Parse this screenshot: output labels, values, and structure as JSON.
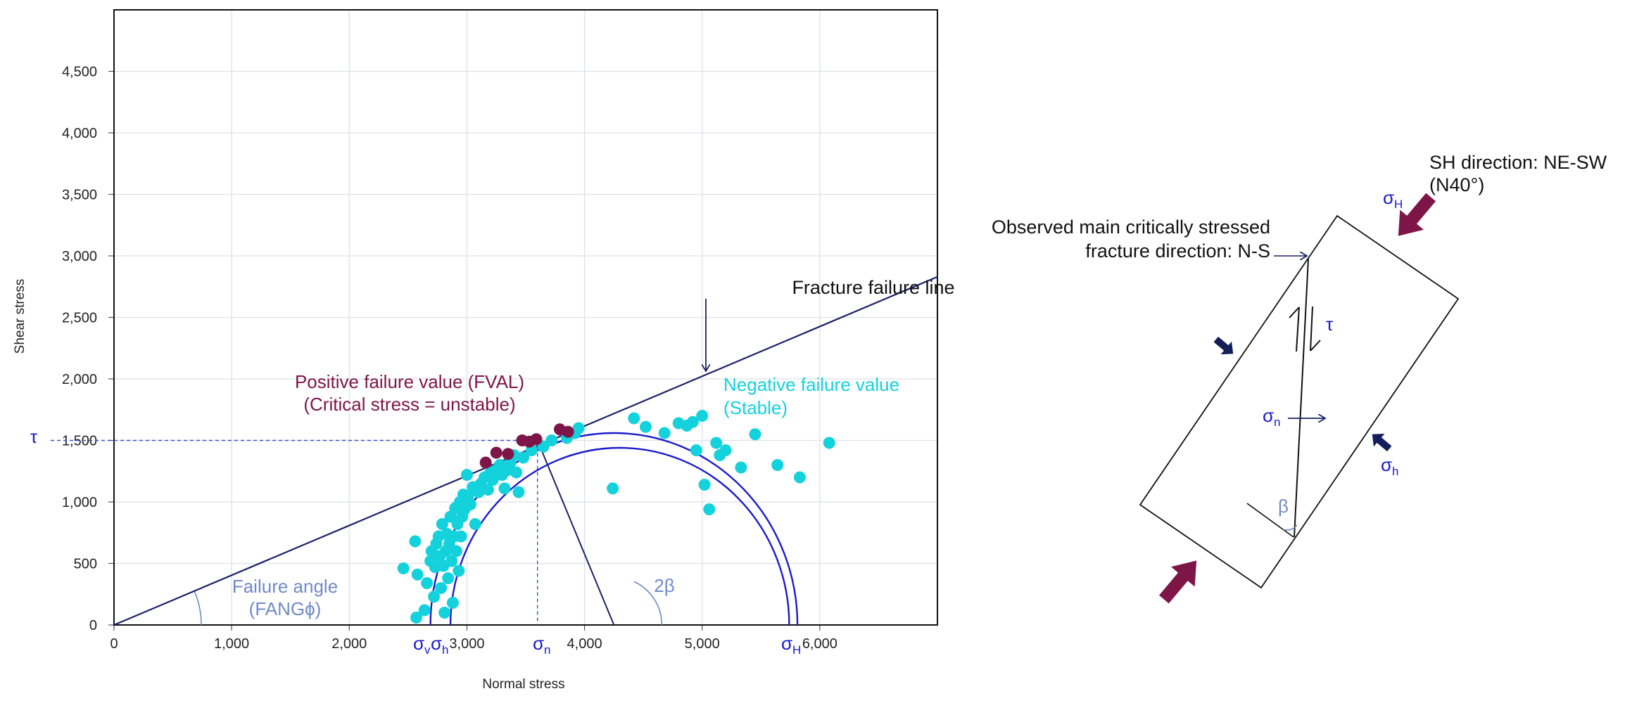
{
  "colors": {
    "navy": "#1a2266",
    "blue": "#1a1acc",
    "cyan": "#14d2dc",
    "maroon": "#7e1548",
    "grid": "#dfe0ea",
    "light_blue": "#6f8ac8"
  },
  "chart_data": {
    "type": "scatter",
    "xlabel": "Normal stress",
    "ylabel": "Shear stress",
    "xlim": [
      0,
      7000
    ],
    "ylim": [
      0,
      5000
    ],
    "grid": true,
    "x_ticks": [
      {
        "v": 0,
        "label": "0"
      },
      {
        "v": 1000,
        "label": "1,000"
      },
      {
        "v": 2000,
        "label": "2,000"
      },
      {
        "v": 3000,
        "label": "3,000"
      },
      {
        "v": 4000,
        "label": "4,000"
      },
      {
        "v": 5000,
        "label": "5,000"
      },
      {
        "v": 6000,
        "label": "6,000"
      }
    ],
    "y_ticks": [
      {
        "v": 0,
        "label": "0"
      },
      {
        "v": 500,
        "label": "500"
      },
      {
        "v": 1000,
        "label": "1,000"
      },
      {
        "v": 1500,
        "label": "1,500"
      },
      {
        "v": 2000,
        "label": "2,000"
      },
      {
        "v": 2500,
        "label": "2,500"
      },
      {
        "v": 3000,
        "label": "3,000"
      },
      {
        "v": 3500,
        "label": "3,500"
      },
      {
        "v": 4000,
        "label": "4,000"
      },
      {
        "v": 4500,
        "label": "4,500"
      }
    ],
    "failure_line": {
      "x": [
        0,
        7000
      ],
      "y": [
        0,
        2830
      ]
    },
    "mohr_circles": [
      {
        "name": "outer",
        "center": 4250,
        "radius": 1560
      },
      {
        "name": "inner",
        "center": 4300,
        "radius": 1440
      }
    ],
    "stress_markers": {
      "tau_value": 1500,
      "sigma_n": 3600,
      "circle_center": 4250,
      "two_beta_deg": 65
    },
    "series": [
      {
        "name": "Positive failure value (FVAL)",
        "color": "#7e1548",
        "points": [
          [
            3160,
            1320
          ],
          [
            3250,
            1400
          ],
          [
            3350,
            1390
          ],
          [
            3470,
            1500
          ],
          [
            3530,
            1490
          ],
          [
            3590,
            1510
          ],
          [
            3790,
            1590
          ],
          [
            3860,
            1570
          ]
        ]
      },
      {
        "name": "Negative failure value (Stable)",
        "color": "#14d2dc",
        "points": [
          [
            2460,
            460
          ],
          [
            2560,
            680
          ],
          [
            2580,
            410
          ],
          [
            2640,
            120
          ],
          [
            2660,
            340
          ],
          [
            2690,
            520
          ],
          [
            2700,
            600
          ],
          [
            2720,
            230
          ],
          [
            2730,
            470
          ],
          [
            2740,
            660
          ],
          [
            2760,
            720
          ],
          [
            2770,
            560
          ],
          [
            2780,
            300
          ],
          [
            2790,
            820
          ],
          [
            2800,
            480
          ],
          [
            2810,
            100
          ],
          [
            2820,
            600
          ],
          [
            2830,
            740
          ],
          [
            2840,
            380
          ],
          [
            2850,
            660
          ],
          [
            2860,
            880
          ],
          [
            2870,
            520
          ],
          [
            2880,
            180
          ],
          [
            2890,
            720
          ],
          [
            2900,
            950
          ],
          [
            2910,
            600
          ],
          [
            2920,
            820
          ],
          [
            2930,
            440
          ],
          [
            2940,
            1000
          ],
          [
            2950,
            720
          ],
          [
            2960,
            880
          ],
          [
            2970,
            1060
          ],
          [
            2980,
            940
          ],
          [
            3000,
            1220
          ],
          [
            3010,
            1040
          ],
          [
            3030,
            980
          ],
          [
            3050,
            1120
          ],
          [
            3070,
            820
          ],
          [
            3100,
            1080
          ],
          [
            3120,
            1150
          ],
          [
            3150,
            1200
          ],
          [
            3180,
            1100
          ],
          [
            3200,
            1240
          ],
          [
            3220,
            1180
          ],
          [
            3250,
            1260
          ],
          [
            3280,
            1300
          ],
          [
            3300,
            1220
          ],
          [
            3320,
            1110
          ],
          [
            3350,
            1260
          ],
          [
            3370,
            1320
          ],
          [
            3400,
            1380
          ],
          [
            3420,
            1240
          ],
          [
            3440,
            1080
          ],
          [
            3480,
            1360
          ],
          [
            3550,
            1420
          ],
          [
            3650,
            1450
          ],
          [
            3720,
            1500
          ],
          [
            3850,
            1520
          ],
          [
            3920,
            1560
          ],
          [
            3950,
            1600
          ],
          [
            4240,
            1110
          ],
          [
            4420,
            1680
          ],
          [
            4520,
            1610
          ],
          [
            4680,
            1560
          ],
          [
            4800,
            1640
          ],
          [
            4870,
            1620
          ],
          [
            4920,
            1650
          ],
          [
            4950,
            1420
          ],
          [
            5000,
            1700
          ],
          [
            5020,
            1140
          ],
          [
            5060,
            940
          ],
          [
            5120,
            1480
          ],
          [
            5150,
            1380
          ],
          [
            5200,
            1420
          ],
          [
            5330,
            1280
          ],
          [
            5450,
            1550
          ],
          [
            5640,
            1300
          ],
          [
            5830,
            1200
          ],
          [
            6080,
            1480
          ],
          [
            2570,
            60
          ]
        ]
      }
    ],
    "annotations": {
      "fracture_failure_line": "Fracture failure line",
      "fval_line1": "Positive failure value (FVAL)",
      "fval_line2": "(Critical stress = unstable)",
      "neg_line1": "Negative failure value",
      "neg_line2": "(Stable)",
      "failure_angle_line1": "Failure angle",
      "failure_angle_line2": "(FANGϕ)",
      "tau": "τ",
      "two_beta": "2β",
      "sigma": "σ",
      "sigma_v_sub": "v",
      "sigma_h_sub": "h",
      "sigma_n_sub": "n",
      "sigma_H_sub": "H"
    }
  },
  "diagram": {
    "sh_direction_line1": "SH direction: NE-SW",
    "sh_direction_line2": "(N40°)",
    "observed_line1": "Observed main critically stressed",
    "observed_line2": "fracture direction: N-S",
    "sigma": "σ",
    "sigma_H_sub": "H",
    "sigma_h_sub": "h",
    "sigma_n_sub": "n",
    "tau": "τ",
    "beta": "β",
    "arrow_icons": [
      "large-compression-arrow-icon",
      "small-compression-arrow-icon"
    ]
  }
}
